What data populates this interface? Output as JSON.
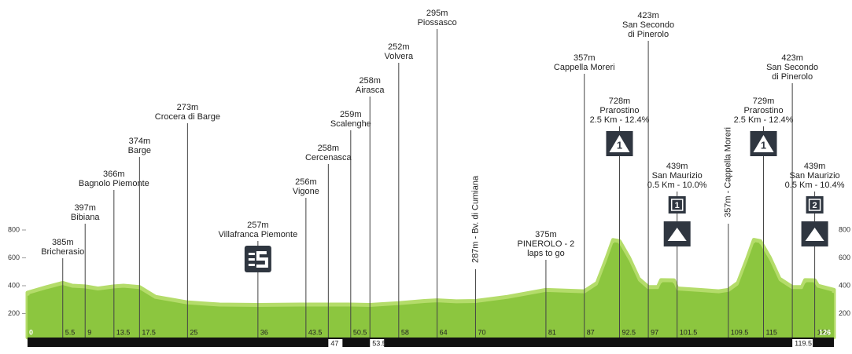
{
  "chart_data": {
    "type": "area",
    "color": "#8cc63f",
    "edge_color": "#b4dc6a",
    "x": [
      0,
      3,
      5.5,
      7,
      9,
      11,
      13.5,
      15,
      17.5,
      20,
      25,
      30,
      36,
      43.5,
      47,
      50.5,
      53.5,
      58,
      62,
      64,
      67,
      70,
      75,
      81,
      87,
      89,
      90.5,
      91.5,
      92.5,
      94,
      95.5,
      97,
      98.5,
      99,
      101,
      101.5,
      105,
      108,
      109.5,
      111,
      112.5,
      113.5,
      114.5,
      116,
      117.5,
      119.5,
      121,
      121.5,
      123,
      123.5,
      126
    ],
    "values": [
      350,
      390,
      420,
      400,
      395,
      380,
      395,
      400,
      390,
      320,
      280,
      265,
      262,
      265,
      265,
      265,
      262,
      275,
      290,
      295,
      288,
      290,
      320,
      370,
      360,
      420,
      600,
      728,
      720,
      600,
      450,
      390,
      390,
      440,
      439,
      380,
      370,
      360,
      370,
      420,
      600,
      729,
      720,
      600,
      450,
      390,
      390,
      440,
      439,
      400,
      370
    ],
    "xlim": [
      0,
      126
    ],
    "ylim": [
      0,
      800
    ],
    "yticks": [
      200,
      400,
      600,
      800
    ],
    "waypoints": [
      {
        "km": 0
      },
      {
        "km": 5.5,
        "text": [
          "385m",
          "Bricherasio"
        ]
      },
      {
        "km": 9,
        "text": [
          "397m",
          "Bibiana"
        ]
      },
      {
        "km": 13.5,
        "text": [
          "366m",
          "Bagnolo Piemonte"
        ]
      },
      {
        "km": 17.5,
        "text": [
          "374m",
          "Barge"
        ]
      },
      {
        "km": 25,
        "text": [
          "273m",
          "Crocera di Barge"
        ]
      },
      {
        "km": 36,
        "text": [
          "257m",
          "Villafranca Piemonte"
        ],
        "icon": "sprint"
      },
      {
        "km": 43.5,
        "text": [
          "256m",
          "Vigone"
        ]
      },
      {
        "km": 47,
        "text": [
          "258m",
          "Cercenasca"
        ]
      },
      {
        "km": 50.5,
        "text": [
          "259m",
          "Scalenghe"
        ]
      },
      {
        "km": 53.5,
        "text": [
          "258m",
          "Airasca"
        ]
      },
      {
        "km": 58,
        "text": [
          "252m",
          "Volvera"
        ]
      },
      {
        "km": 64,
        "text": [
          "295m",
          "Piossasco"
        ]
      },
      {
        "km": 70,
        "text": [
          "287m - Bv. di Cumiana"
        ]
      },
      {
        "km": 81,
        "text": [
          "375m",
          "PINEROLO - 2",
          "laps to go"
        ]
      },
      {
        "km": 87,
        "text": [
          "357m",
          "Cappella Moreri"
        ]
      },
      {
        "km": 92.5,
        "text": [
          "728m",
          "Prarostino",
          "2.5 Km - 12.4%"
        ],
        "icon": "kom",
        "icon_label": "1"
      },
      {
        "km": 97,
        "text": [
          "423m",
          "San Secondo",
          "di Pinerolo"
        ]
      },
      {
        "km": 101.5,
        "text": [
          "439m",
          "San Maurizio",
          "0.5 Km - 10.0%"
        ],
        "icon": "kom-small",
        "icon_label": "1"
      },
      {
        "km": 109.5,
        "text": [
          "357m - Cappella Moreri"
        ]
      },
      {
        "km": 115,
        "text": [
          "729m",
          "Prarostino",
          "2.5 Km - 12.4%"
        ],
        "icon": "kom",
        "icon_label": "1"
      },
      {
        "km": 119.5,
        "text": [
          "423m",
          "San Secondo",
          "di Pinerolo"
        ]
      },
      {
        "km": 123,
        "text": [
          "439m",
          "San Maurizio",
          "0.5 Km - 10.4%"
        ],
        "icon": "kom-small",
        "icon_label": "2"
      },
      {
        "km": 126
      }
    ]
  }
}
